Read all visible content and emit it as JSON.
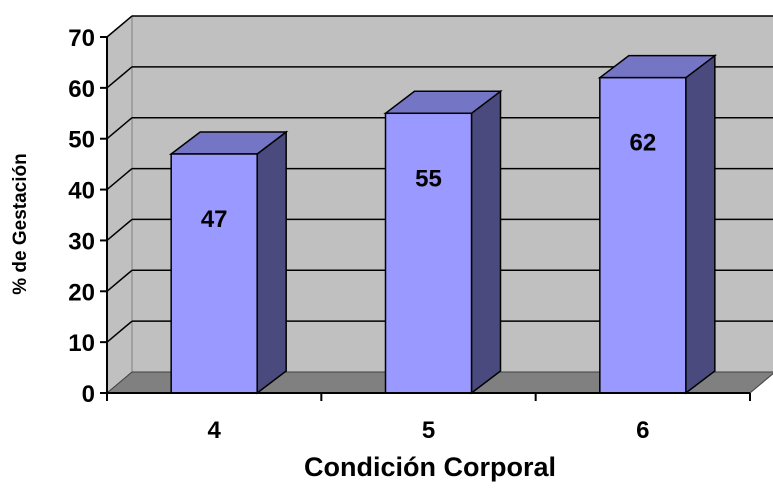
{
  "chart_data": {
    "type": "bar",
    "title": "",
    "xlabel": "Condición Corporal",
    "ylabel": "% de Gestación",
    "categories": [
      "4",
      "5",
      "6"
    ],
    "series": [
      {
        "values": [
          47,
          55,
          62
        ]
      }
    ],
    "data_labels": [
      "47",
      "55",
      "62"
    ],
    "yticks": [
      "0",
      "10",
      "20",
      "30",
      "40",
      "50",
      "60",
      "70"
    ],
    "ylim": [
      0,
      70
    ],
    "grid": true,
    "legend": "none",
    "colors": {
      "bar_front": "#9999ff",
      "bar_side": "#4a4a7e",
      "bar_top": "#7575c6",
      "wall": "#c0c0c0",
      "floor": "#808080",
      "gridline": "#000000"
    }
  }
}
